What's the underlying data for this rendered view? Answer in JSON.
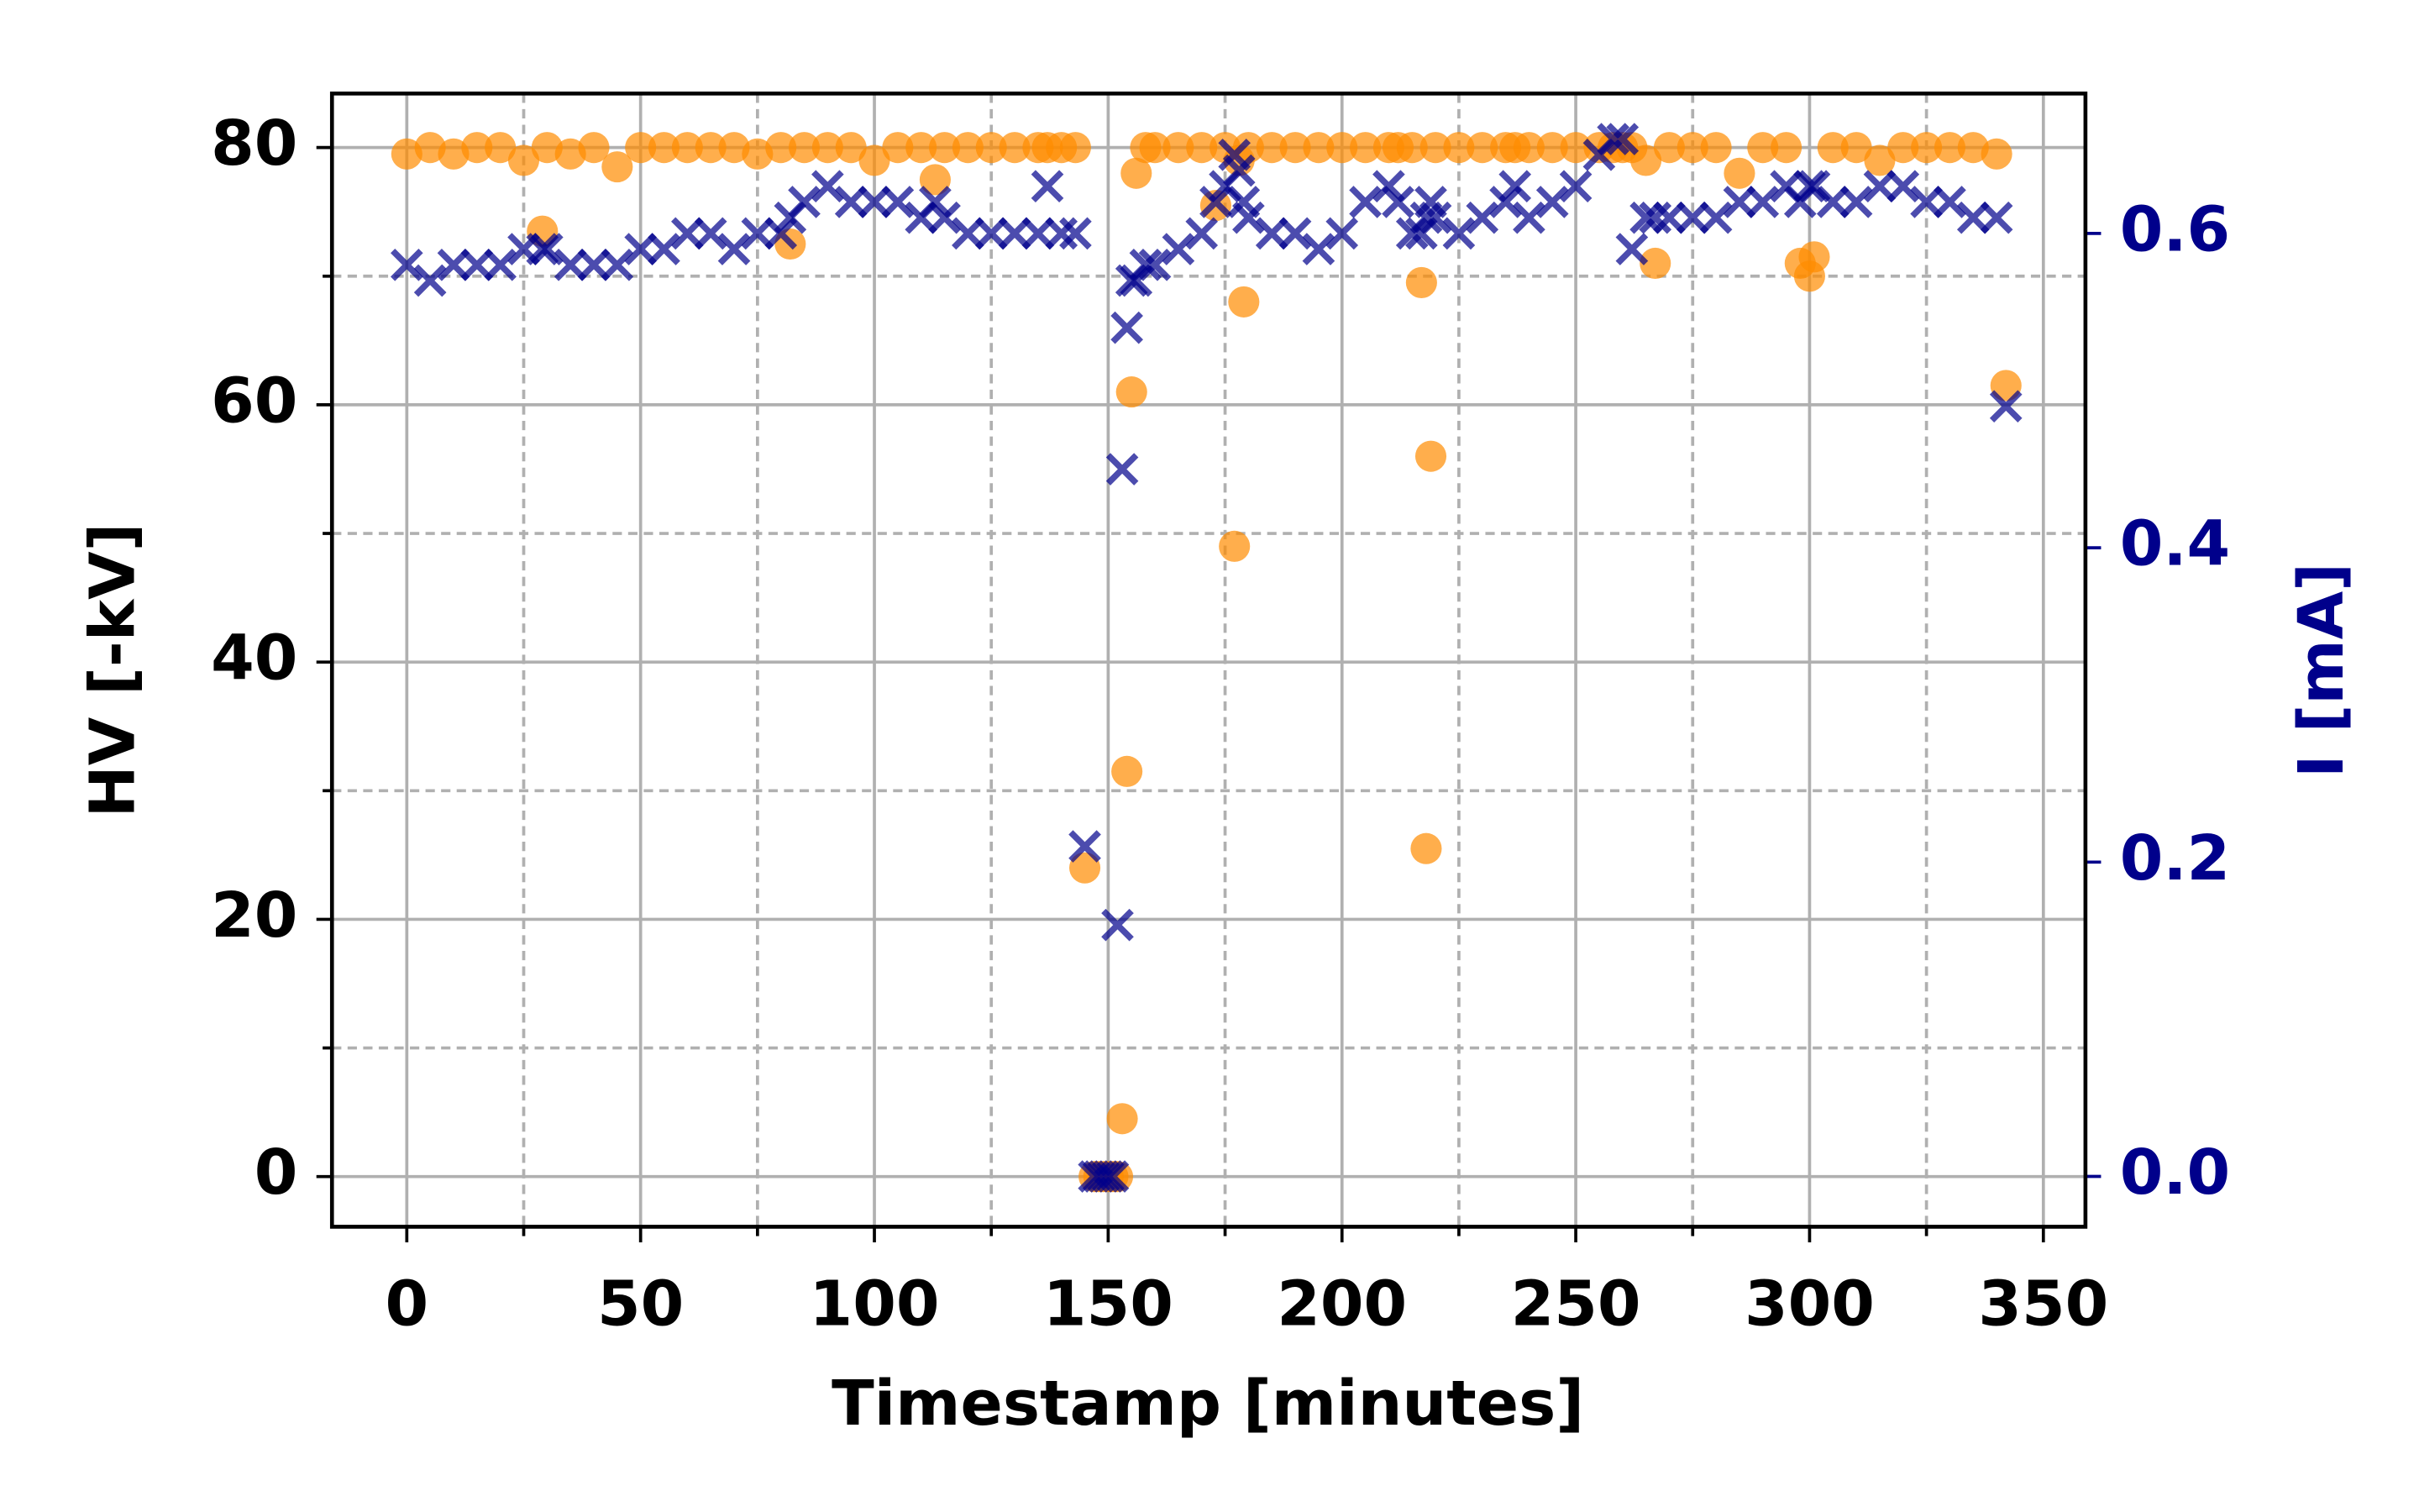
{
  "chart_data": {
    "type": "scatter",
    "xlabel": "Timestamp [minutes]",
    "ylabel": "HV [-kV]",
    "y2label": "I [mA]",
    "xlim": [
      -16,
      359
    ],
    "ylim": [
      -3.9,
      84.2
    ],
    "y2lim": [
      -0.032,
      0.689
    ],
    "xticks": [
      0,
      50,
      100,
      150,
      200,
      250,
      300,
      350
    ],
    "xminorticks": [
      25,
      75,
      125,
      175,
      225,
      275,
      325
    ],
    "yticks": [
      0,
      20,
      40,
      60,
      80
    ],
    "yminorticks": [
      10,
      30,
      50,
      70
    ],
    "y2ticks": [
      {
        "value": 0,
        "label": "0.0"
      },
      0.2,
      0.4,
      0.6
    ],
    "y2color": "#00008b",
    "grid": true,
    "x": [
      0,
      5,
      10,
      15,
      20,
      25,
      29,
      30,
      35,
      40,
      45,
      50,
      55,
      60,
      65,
      70,
      75,
      80,
      82,
      85,
      90,
      95,
      100,
      105,
      110,
      113,
      115,
      120,
      125,
      130,
      135,
      137,
      140,
      143,
      145,
      147,
      148,
      149,
      150,
      151,
      152,
      153,
      154,
      155,
      156,
      158,
      160,
      165,
      170,
      173,
      175,
      177,
      178,
      179,
      180,
      185,
      190,
      195,
      200,
      205,
      210,
      212,
      215,
      217,
      218,
      219,
      220,
      225,
      230,
      235,
      237,
      240,
      245,
      250,
      255,
      258,
      260,
      262,
      265,
      267,
      270,
      275,
      280,
      285,
      290,
      295,
      298,
      300,
      301,
      305,
      310,
      315,
      320,
      325,
      330,
      335,
      340,
      342
    ],
    "series": [
      {
        "marker": "circle",
        "color": "#ff8c00",
        "axis": "y",
        "values": [
          79.5,
          80,
          79.5,
          80,
          80,
          79,
          73.5,
          80,
          79.5,
          80,
          78.5,
          80,
          80,
          80,
          80,
          80,
          79.5,
          80,
          72.5,
          80,
          80,
          80,
          79,
          80,
          80,
          77.5,
          80,
          80,
          80,
          80,
          80,
          80,
          80,
          80,
          24,
          0,
          0,
          0,
          0,
          0,
          0,
          4.5,
          31.5,
          61,
          78,
          80,
          80,
          80,
          80,
          75.5,
          80,
          49,
          79,
          68,
          80,
          80,
          80,
          80,
          80,
          80,
          80,
          80,
          80,
          69.5,
          25.5,
          56,
          80,
          80,
          80,
          80,
          80,
          80,
          80,
          80,
          80,
          80,
          80,
          80,
          79,
          71,
          80,
          80,
          80,
          78,
          80,
          80,
          71,
          70,
          71.5,
          80,
          80,
          79,
          80,
          80,
          80,
          80,
          79.5,
          61.5
        ]
      },
      {
        "marker": "x",
        "color": "#00008b",
        "axis": "y2",
        "values": [
          0.58,
          0.57,
          0.58,
          0.58,
          0.58,
          0.59,
          0.59,
          0.59,
          0.58,
          0.58,
          0.58,
          0.59,
          0.59,
          0.6,
          0.6,
          0.59,
          0.6,
          0.6,
          0.61,
          0.62,
          0.63,
          0.62,
          0.62,
          0.62,
          0.61,
          0.62,
          0.61,
          0.6,
          0.6,
          0.6,
          0.6,
          0.63,
          0.6,
          0.6,
          0.21,
          0,
          0,
          0,
          0,
          0,
          0.16,
          0.45,
          0.54,
          0.57,
          0.57,
          0.58,
          0.58,
          0.59,
          0.6,
          0.62,
          0.63,
          0.65,
          0.64,
          0.62,
          0.61,
          0.6,
          0.6,
          0.59,
          0.6,
          0.62,
          0.63,
          0.62,
          0.6,
          0.6,
          0.61,
          0.62,
          0.61,
          0.6,
          0.61,
          0.62,
          0.63,
          0.61,
          0.62,
          0.63,
          0.65,
          0.66,
          0.66,
          0.59,
          0.61,
          0.61,
          0.61,
          0.61,
          0.61,
          0.62,
          0.62,
          0.63,
          0.62,
          0.63,
          0.63,
          0.62,
          0.62,
          0.63,
          0.63,
          0.62,
          0.62,
          0.61,
          0.61,
          0.49
        ]
      }
    ]
  }
}
